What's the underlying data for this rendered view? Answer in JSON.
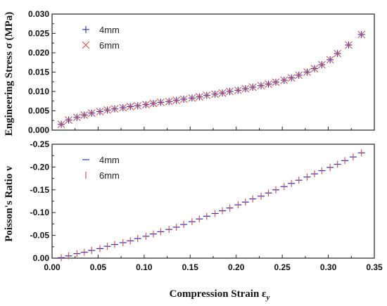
{
  "chart_data": [
    {
      "type": "scatter",
      "panel": "top",
      "ylabel": "Engineering Stress σ (MPa)",
      "xlabel": "",
      "xlim": [
        0.0,
        0.35
      ],
      "ylim": [
        0.0,
        0.03
      ],
      "yticks": [
        0.0,
        0.005,
        0.01,
        0.015,
        0.02,
        0.025,
        0.03
      ],
      "ytick_labels": [
        "0.000",
        "0.005",
        "0.010",
        "0.015",
        "0.020",
        "0.025",
        "0.030"
      ],
      "legend_position": "top-left",
      "grid": false,
      "x": [
        0.01,
        0.018,
        0.027,
        0.035,
        0.043,
        0.052,
        0.06,
        0.068,
        0.077,
        0.085,
        0.093,
        0.102,
        0.11,
        0.118,
        0.127,
        0.135,
        0.143,
        0.152,
        0.16,
        0.168,
        0.177,
        0.185,
        0.193,
        0.202,
        0.21,
        0.218,
        0.227,
        0.235,
        0.243,
        0.252,
        0.26,
        0.268,
        0.277,
        0.285,
        0.293,
        0.302,
        0.31,
        0.322,
        0.336
      ],
      "series": [
        {
          "name": "4mm",
          "marker": "plus",
          "color": "#2b2bbf",
          "values": [
            0.0015,
            0.0026,
            0.0033,
            0.0039,
            0.0044,
            0.0048,
            0.0052,
            0.0055,
            0.0058,
            0.0061,
            0.0063,
            0.0066,
            0.0069,
            0.0072,
            0.0074,
            0.0077,
            0.008,
            0.0083,
            0.0086,
            0.009,
            0.0093,
            0.0096,
            0.01,
            0.0103,
            0.0107,
            0.0111,
            0.0115,
            0.0119,
            0.0124,
            0.0129,
            0.0135,
            0.0142,
            0.015,
            0.0159,
            0.0169,
            0.0182,
            0.0198,
            0.022,
            0.0247
          ]
        },
        {
          "name": "6mm",
          "marker": "x",
          "color": "#d9534f",
          "values": [
            0.0015,
            0.0026,
            0.0033,
            0.0039,
            0.0044,
            0.0048,
            0.0052,
            0.0055,
            0.0058,
            0.0061,
            0.0063,
            0.0066,
            0.0069,
            0.0072,
            0.0074,
            0.0077,
            0.008,
            0.0083,
            0.0086,
            0.009,
            0.0093,
            0.0096,
            0.01,
            0.0103,
            0.0107,
            0.0111,
            0.0115,
            0.0119,
            0.0124,
            0.0129,
            0.0135,
            0.0142,
            0.015,
            0.0159,
            0.0169,
            0.0182,
            0.0198,
            0.022,
            0.0247
          ]
        }
      ]
    },
    {
      "type": "scatter",
      "panel": "bottom",
      "ylabel": "Poisson's Ratio ν",
      "xlabel": "Compression Strain ε",
      "xlabel_subscript": "y",
      "xlim": [
        0.0,
        0.35
      ],
      "ylim": [
        0.0,
        -0.25
      ],
      "yticks": [
        0.0,
        -0.05,
        -0.1,
        -0.15,
        -0.2,
        -0.25
      ],
      "ytick_labels": [
        "0.00",
        "-0.05",
        "-0.10",
        "-0.15",
        "-0.20",
        "-0.25"
      ],
      "xticks": [
        0.0,
        0.05,
        0.1,
        0.15,
        0.2,
        0.25,
        0.3,
        0.35
      ],
      "xtick_labels": [
        "0.00",
        "0.05",
        "0.10",
        "0.15",
        "0.20",
        "0.25",
        "0.30",
        "0.35"
      ],
      "legend_position": "top-left",
      "grid": false,
      "x": [
        0.01,
        0.018,
        0.027,
        0.035,
        0.043,
        0.052,
        0.06,
        0.068,
        0.077,
        0.085,
        0.093,
        0.102,
        0.11,
        0.118,
        0.127,
        0.135,
        0.143,
        0.152,
        0.16,
        0.168,
        0.177,
        0.185,
        0.193,
        0.202,
        0.21,
        0.218,
        0.227,
        0.235,
        0.243,
        0.252,
        0.26,
        0.268,
        0.277,
        0.285,
        0.293,
        0.302,
        0.31,
        0.318,
        0.327,
        0.336
      ],
      "series": [
        {
          "name": "4mm",
          "marker": "hline",
          "color": "#2b2bbf",
          "values": [
            -0.001,
            -0.005,
            -0.01,
            -0.013,
            -0.017,
            -0.021,
            -0.026,
            -0.03,
            -0.034,
            -0.038,
            -0.043,
            -0.048,
            -0.053,
            -0.058,
            -0.063,
            -0.068,
            -0.074,
            -0.08,
            -0.086,
            -0.092,
            -0.098,
            -0.104,
            -0.11,
            -0.117,
            -0.123,
            -0.13,
            -0.136,
            -0.143,
            -0.15,
            -0.157,
            -0.164,
            -0.171,
            -0.178,
            -0.185,
            -0.192,
            -0.199,
            -0.206,
            -0.214,
            -0.222,
            -0.231
          ]
        },
        {
          "name": "6mm",
          "marker": "vline",
          "color": "#d9534f",
          "values": [
            -0.001,
            -0.005,
            -0.01,
            -0.013,
            -0.017,
            -0.021,
            -0.026,
            -0.03,
            -0.034,
            -0.038,
            -0.043,
            -0.048,
            -0.053,
            -0.058,
            -0.063,
            -0.068,
            -0.074,
            -0.08,
            -0.086,
            -0.092,
            -0.098,
            -0.104,
            -0.11,
            -0.117,
            -0.123,
            -0.13,
            -0.136,
            -0.143,
            -0.15,
            -0.157,
            -0.164,
            -0.171,
            -0.178,
            -0.185,
            -0.192,
            -0.199,
            -0.206,
            -0.214,
            -0.222,
            -0.231
          ]
        }
      ]
    }
  ]
}
